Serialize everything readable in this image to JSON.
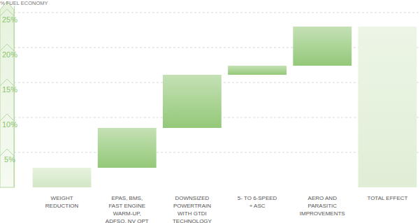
{
  "chart_data": {
    "type": "waterfall",
    "y_label": "% FUEL ECONOMY",
    "categories": [
      "WEIGHT\nREDUCTION",
      "EPAS, BMS,\nFAST ENGINE\nWARM-UP,\nADFSO, NV OPT",
      "DOWNSIZED\nPOWERTRAIN\nWITH GTDI\nTECHNOLOGY",
      "5- TO 6-SPEED\n+ ASC",
      "AERO AND\nPARASITIC\nIMPROVEMENTS",
      "TOTAL EFFECT"
    ],
    "values": [
      2.8,
      5.7,
      7.6,
      1.3,
      5.6,
      23.0
    ],
    "colors": [
      "#d3e7c4",
      "#94c879",
      "#94c879",
      "#94c879",
      "#94c879",
      "#e0eed6"
    ],
    "ylim": [
      0,
      26
    ],
    "yticks": [
      {
        "value": 5,
        "label": "5%"
      },
      {
        "value": 10,
        "label": "10%"
      },
      {
        "value": 15,
        "label": "15%"
      },
      {
        "value": 20,
        "label": "20%"
      },
      {
        "value": 25,
        "label": "25%"
      }
    ],
    "grid": true
  }
}
